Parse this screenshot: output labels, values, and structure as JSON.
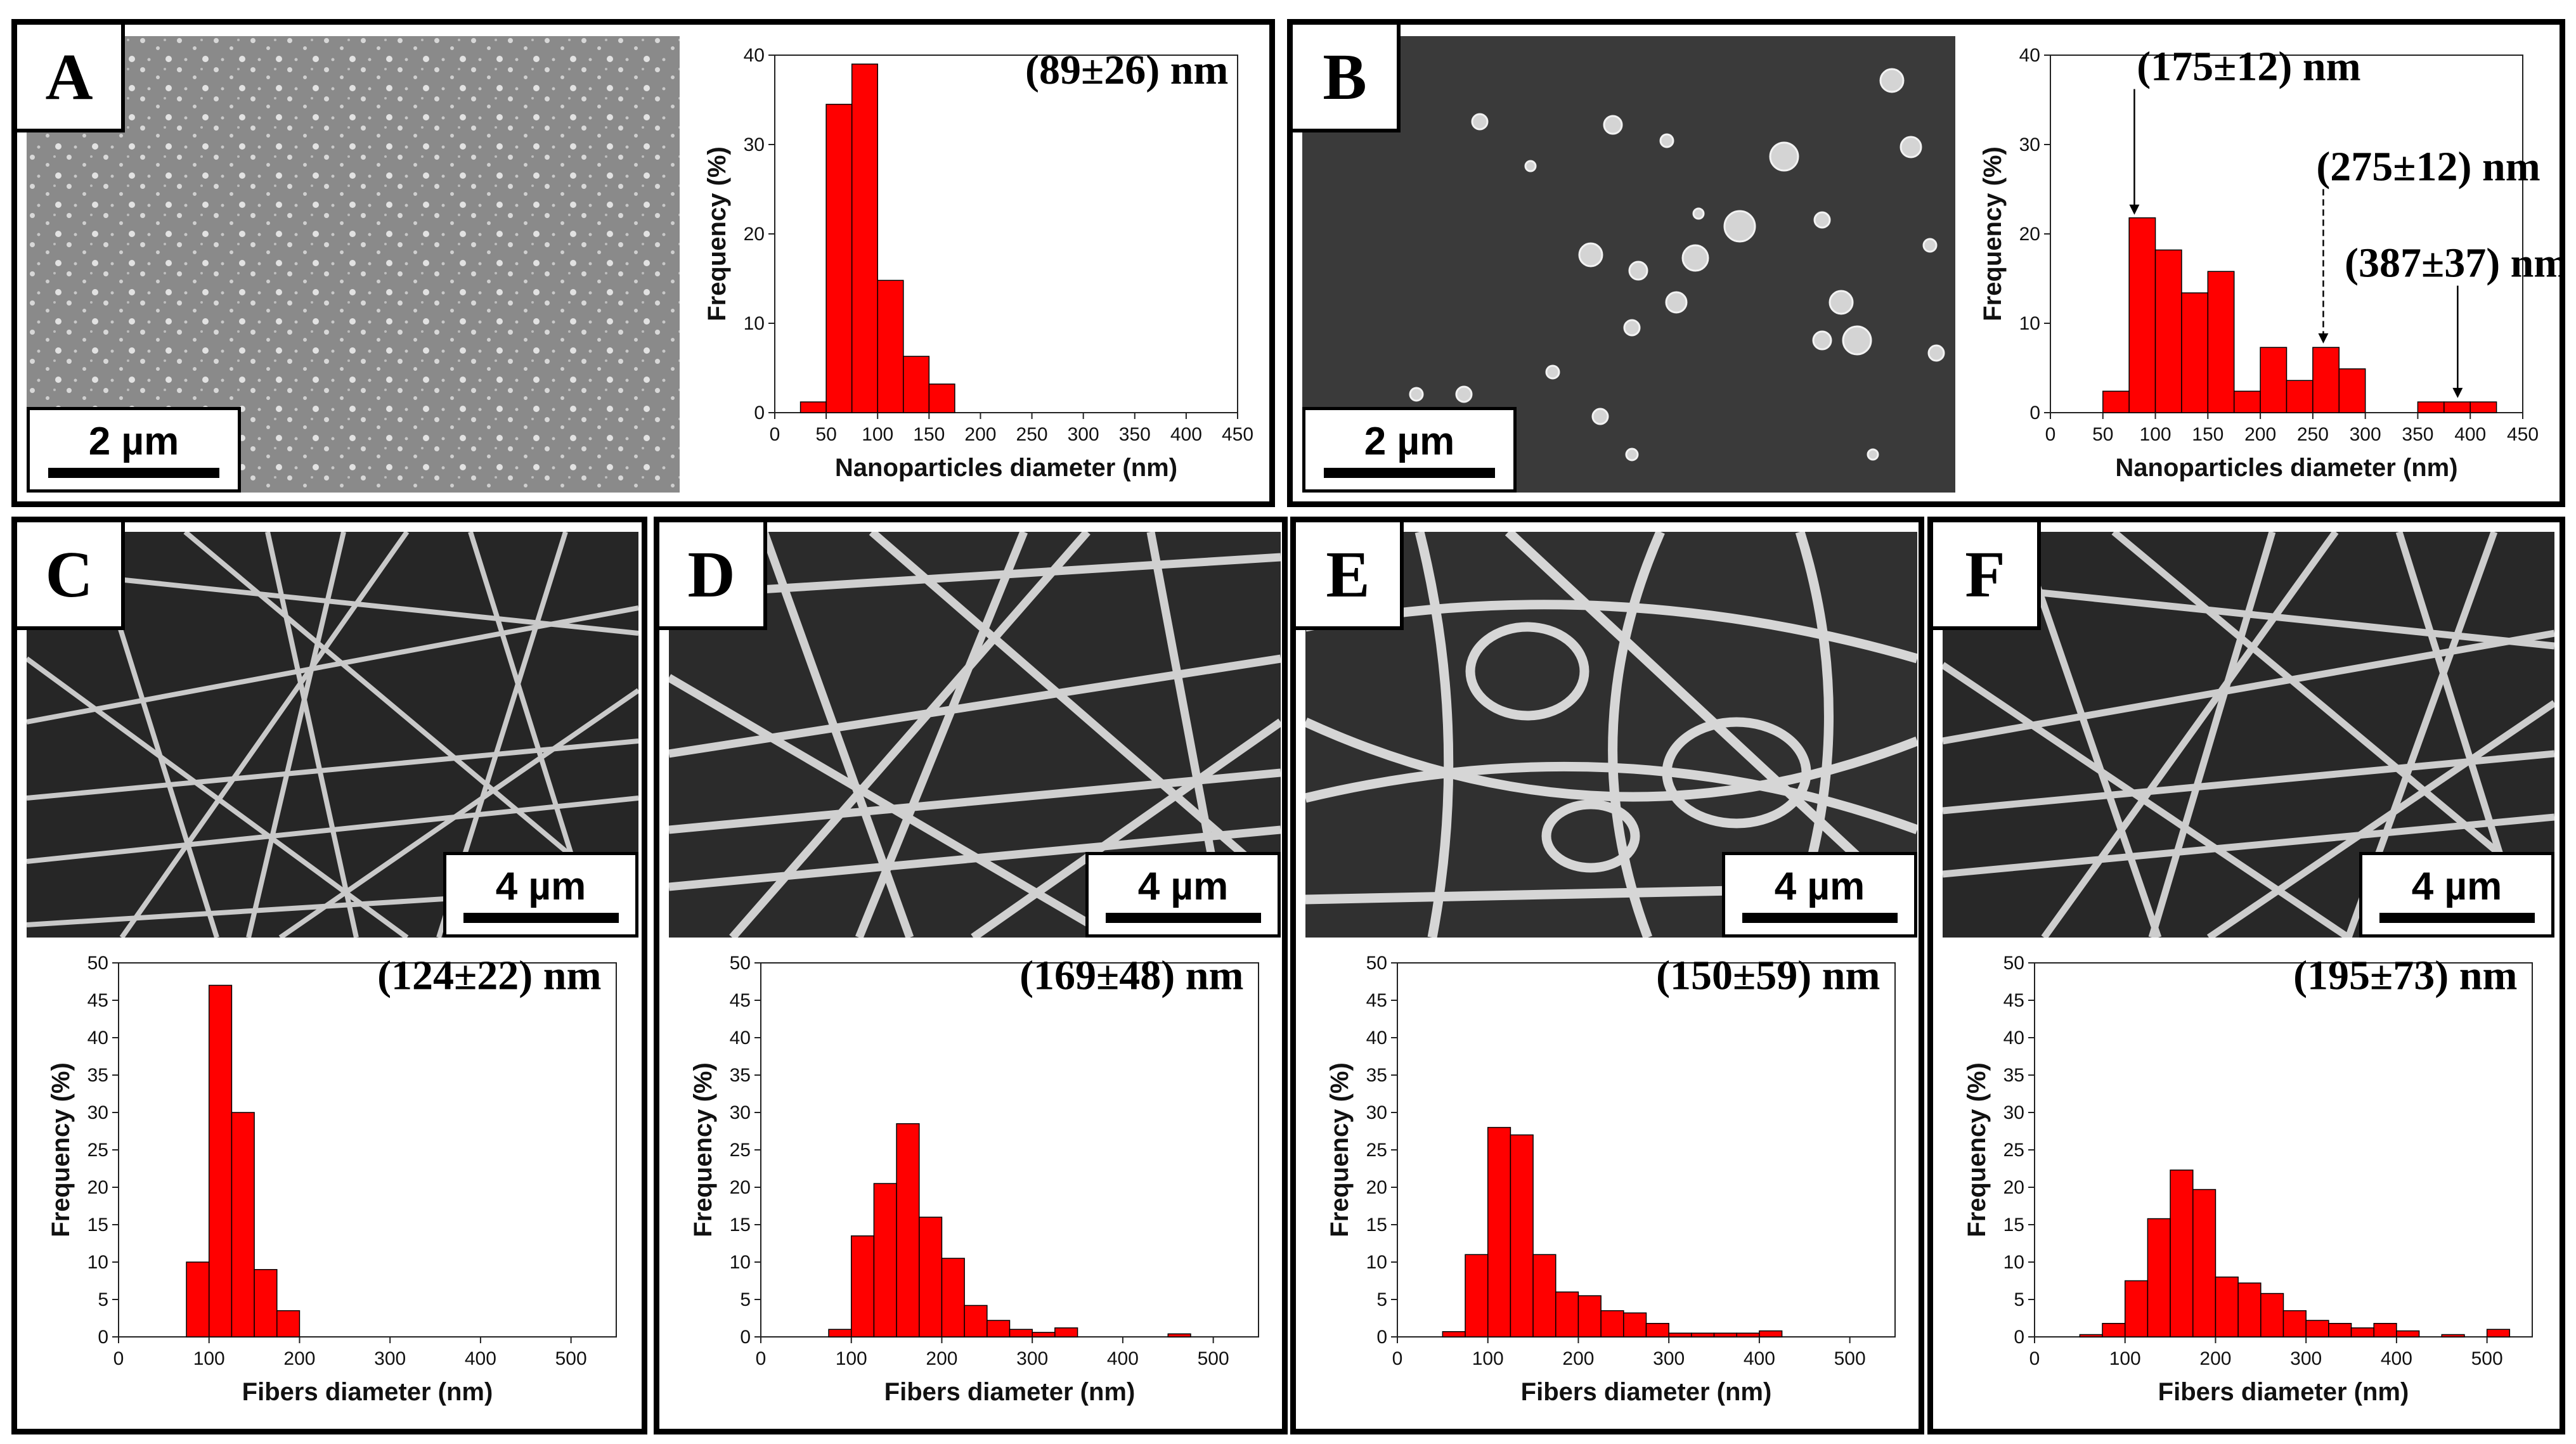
{
  "figure": {
    "panels": [
      {
        "letter": "A",
        "scale_bar": "2 µm",
        "image": "SEM micrograph of nanoparticles"
      },
      {
        "letter": "B",
        "scale_bar": "2 µm",
        "image": "SEM micrograph of nanoparticles"
      },
      {
        "letter": "C",
        "scale_bar": "4 µm",
        "image": "SEM micrograph of fibers"
      },
      {
        "letter": "D",
        "scale_bar": "4 µm",
        "image": "SEM micrograph of fibers"
      },
      {
        "letter": "E",
        "scale_bar": "4 µm",
        "image": "SEM micrograph of fibers"
      },
      {
        "letter": "F",
        "scale_bar": "4 µm",
        "image": "SEM micrograph of fibers"
      }
    ]
  },
  "colors": {
    "bar": "#ff0000",
    "bar_edge": "#000000"
  },
  "chart_data": [
    {
      "panel": "A",
      "type": "bar",
      "xlabel": "Nanoparticles diameter (nm)",
      "ylabel": "Frequency (%)",
      "xlim": [
        0,
        450
      ],
      "ylim": [
        0,
        40
      ],
      "bin_width": 25,
      "xticks": [
        0,
        50,
        100,
        150,
        200,
        250,
        300,
        350,
        400,
        450
      ],
      "yticks": [
        0,
        10,
        20,
        30,
        40
      ],
      "bins": [
        {
          "start": 25,
          "value": 1.2
        },
        {
          "start": 50,
          "value": 34.5
        },
        {
          "start": 75,
          "value": 39.0
        },
        {
          "start": 100,
          "value": 14.8
        },
        {
          "start": 125,
          "value": 6.3
        },
        {
          "start": 150,
          "value": 3.2
        }
      ],
      "annotations": [
        {
          "text": "(89±26) nm"
        }
      ]
    },
    {
      "panel": "B",
      "type": "bar",
      "xlabel": "Nanoparticles diameter (nm)",
      "ylabel": "Frequency (%)",
      "xlim": [
        0,
        450
      ],
      "ylim": [
        0,
        40
      ],
      "bin_width": 25,
      "xticks": [
        0,
        50,
        100,
        150,
        200,
        250,
        300,
        350,
        400,
        450
      ],
      "yticks": [
        0,
        10,
        20,
        30,
        40
      ],
      "bins": [
        {
          "start": 50,
          "value": 2.4
        },
        {
          "start": 75,
          "value": 21.8
        },
        {
          "start": 100,
          "value": 18.2
        },
        {
          "start": 125,
          "value": 13.4
        },
        {
          "start": 150,
          "value": 15.8
        },
        {
          "start": 175,
          "value": 2.4
        },
        {
          "start": 200,
          "value": 7.3
        },
        {
          "start": 225,
          "value": 3.6
        },
        {
          "start": 250,
          "value": 7.3
        },
        {
          "start": 275,
          "value": 4.9
        },
        {
          "start": 350,
          "value": 1.2
        },
        {
          "start": 375,
          "value": 1.2
        },
        {
          "start": 400,
          "value": 1.2
        }
      ],
      "annotations": [
        {
          "text": "(175±12) nm",
          "arrow_x": 80,
          "arrow_y": 22
        },
        {
          "text": "(275±12) nm",
          "arrow_x": 260,
          "arrow_y": 7.6
        },
        {
          "text": "(387±37) nm",
          "arrow_x": 388,
          "arrow_y": 1.5
        }
      ]
    },
    {
      "panel": "C",
      "type": "bar",
      "xlabel": "Fibers diameter (nm)",
      "ylabel": "Frequency (%)",
      "xlim": [
        0,
        550
      ],
      "ylim": [
        0,
        50
      ],
      "bin_width": 25,
      "xticks": [
        0,
        100,
        200,
        300,
        400,
        500
      ],
      "yticks": [
        0,
        5,
        10,
        15,
        20,
        25,
        30,
        35,
        40,
        45,
        50
      ],
      "bins": [
        {
          "start": 75,
          "value": 10.0
        },
        {
          "start": 100,
          "value": 47.0
        },
        {
          "start": 125,
          "value": 30.0
        },
        {
          "start": 150,
          "value": 9.0
        },
        {
          "start": 175,
          "value": 3.5
        }
      ],
      "annotations": [
        {
          "text": "(124±22) nm"
        }
      ]
    },
    {
      "panel": "D",
      "type": "bar",
      "xlabel": "Fibers diameter (nm)",
      "ylabel": "Frequency (%)",
      "xlim": [
        0,
        550
      ],
      "ylim": [
        0,
        50
      ],
      "bin_width": 25,
      "xticks": [
        0,
        100,
        200,
        300,
        400,
        500
      ],
      "yticks": [
        0,
        5,
        10,
        15,
        20,
        25,
        30,
        35,
        40,
        45,
        50
      ],
      "bins": [
        {
          "start": 75,
          "value": 1.0
        },
        {
          "start": 100,
          "value": 13.5
        },
        {
          "start": 125,
          "value": 20.5
        },
        {
          "start": 150,
          "value": 28.5
        },
        {
          "start": 175,
          "value": 16.0
        },
        {
          "start": 200,
          "value": 10.5
        },
        {
          "start": 225,
          "value": 4.2
        },
        {
          "start": 250,
          "value": 2.2
        },
        {
          "start": 275,
          "value": 1.0
        },
        {
          "start": 300,
          "value": 0.6
        },
        {
          "start": 325,
          "value": 1.2
        },
        {
          "start": 450,
          "value": 0.4
        }
      ],
      "annotations": [
        {
          "text": "(169±48) nm"
        }
      ]
    },
    {
      "panel": "E",
      "type": "bar",
      "xlabel": "Fibers diameter (nm)",
      "ylabel": "Frequency (%)",
      "xlim": [
        0,
        550
      ],
      "ylim": [
        0,
        50
      ],
      "bin_width": 25,
      "xticks": [
        0,
        100,
        200,
        300,
        400,
        500
      ],
      "yticks": [
        0,
        5,
        10,
        15,
        20,
        25,
        30,
        35,
        40,
        45,
        50
      ],
      "bins": [
        {
          "start": 50,
          "value": 0.7
        },
        {
          "start": 75,
          "value": 11.0
        },
        {
          "start": 100,
          "value": 28.0
        },
        {
          "start": 125,
          "value": 27.0
        },
        {
          "start": 150,
          "value": 11.0
        },
        {
          "start": 175,
          "value": 6.0
        },
        {
          "start": 200,
          "value": 5.5
        },
        {
          "start": 225,
          "value": 3.5
        },
        {
          "start": 250,
          "value": 3.2
        },
        {
          "start": 275,
          "value": 1.8
        },
        {
          "start": 300,
          "value": 0.5
        },
        {
          "start": 325,
          "value": 0.5
        },
        {
          "start": 350,
          "value": 0.5
        },
        {
          "start": 375,
          "value": 0.5
        },
        {
          "start": 400,
          "value": 0.8
        }
      ],
      "annotations": [
        {
          "text": "(150±59) nm"
        }
      ]
    },
    {
      "panel": "F",
      "type": "bar",
      "xlabel": "Fibers diameter (nm)",
      "ylabel": "Frequency (%)",
      "xlim": [
        0,
        550
      ],
      "ylim": [
        0,
        50
      ],
      "bin_width": 25,
      "xticks": [
        0,
        100,
        200,
        300,
        400,
        500
      ],
      "yticks": [
        0,
        5,
        10,
        15,
        20,
        25,
        30,
        35,
        40,
        45,
        50
      ],
      "bins": [
        {
          "start": 50,
          "value": 0.3
        },
        {
          "start": 75,
          "value": 1.8
        },
        {
          "start": 100,
          "value": 7.5
        },
        {
          "start": 125,
          "value": 15.8
        },
        {
          "start": 150,
          "value": 22.3
        },
        {
          "start": 175,
          "value": 19.7
        },
        {
          "start": 200,
          "value": 8.0
        },
        {
          "start": 225,
          "value": 7.2
        },
        {
          "start": 250,
          "value": 5.8
        },
        {
          "start": 275,
          "value": 3.5
        },
        {
          "start": 300,
          "value": 2.2
        },
        {
          "start": 325,
          "value": 1.8
        },
        {
          "start": 350,
          "value": 1.2
        },
        {
          "start": 375,
          "value": 1.8
        },
        {
          "start": 400,
          "value": 0.8
        },
        {
          "start": 450,
          "value": 0.3
        },
        {
          "start": 500,
          "value": 1.0
        }
      ],
      "annotations": [
        {
          "text": "(195±73) nm"
        }
      ]
    }
  ]
}
